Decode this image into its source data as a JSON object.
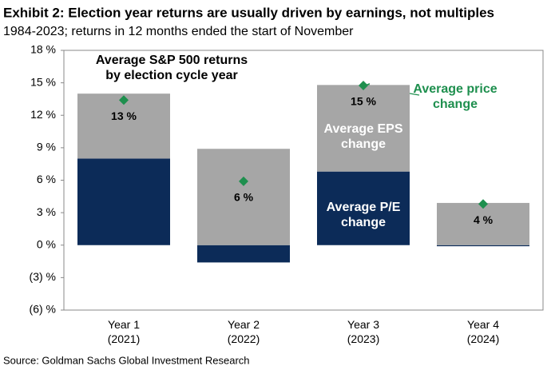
{
  "chart_data": {
    "type": "bar",
    "title": "Exhibit 2: Election year returns are usually driven by earnings, not multiples",
    "subtitle": "1984-2023; returns in 12 months ended the start of November",
    "annotation": "Average S&P 500 returns by election cycle year",
    "source": "Source: Goldman Sachs Global Investment Research",
    "stacked": true,
    "categories": [
      "Year 1 (2021)",
      "Year 2 (2022)",
      "Year 3 (2023)",
      "Year 4 (2024)"
    ],
    "series": [
      {
        "name": "Average P/E change",
        "color": "#0c2b58",
        "values": [
          8.0,
          -1.6,
          6.8,
          -0.1
        ]
      },
      {
        "name": "Average EPS change",
        "color": "#a6a6a6",
        "values": [
          6.0,
          8.9,
          8.0,
          3.9
        ]
      },
      {
        "name": "Average price change",
        "color": "#1e8f4e",
        "type": "marker",
        "values": [
          13.4,
          5.9,
          14.75,
          3.8
        ],
        "value_labels": [
          "13 %",
          "6 %",
          "15 %",
          "4 %"
        ]
      }
    ],
    "ylim": [
      -6,
      18
    ],
    "yticks": [
      {
        "value": -6,
        "label": "(6) %"
      },
      {
        "value": -3,
        "label": "(3) %"
      },
      {
        "value": 0,
        "label": "0 %"
      },
      {
        "value": 3,
        "label": "3 %"
      },
      {
        "value": 6,
        "label": "6 %"
      },
      {
        "value": 9,
        "label": "9 %"
      },
      {
        "value": 12,
        "label": "12 %"
      },
      {
        "value": 15,
        "label": "15 %"
      },
      {
        "value": 18,
        "label": "18 %"
      }
    ]
  }
}
